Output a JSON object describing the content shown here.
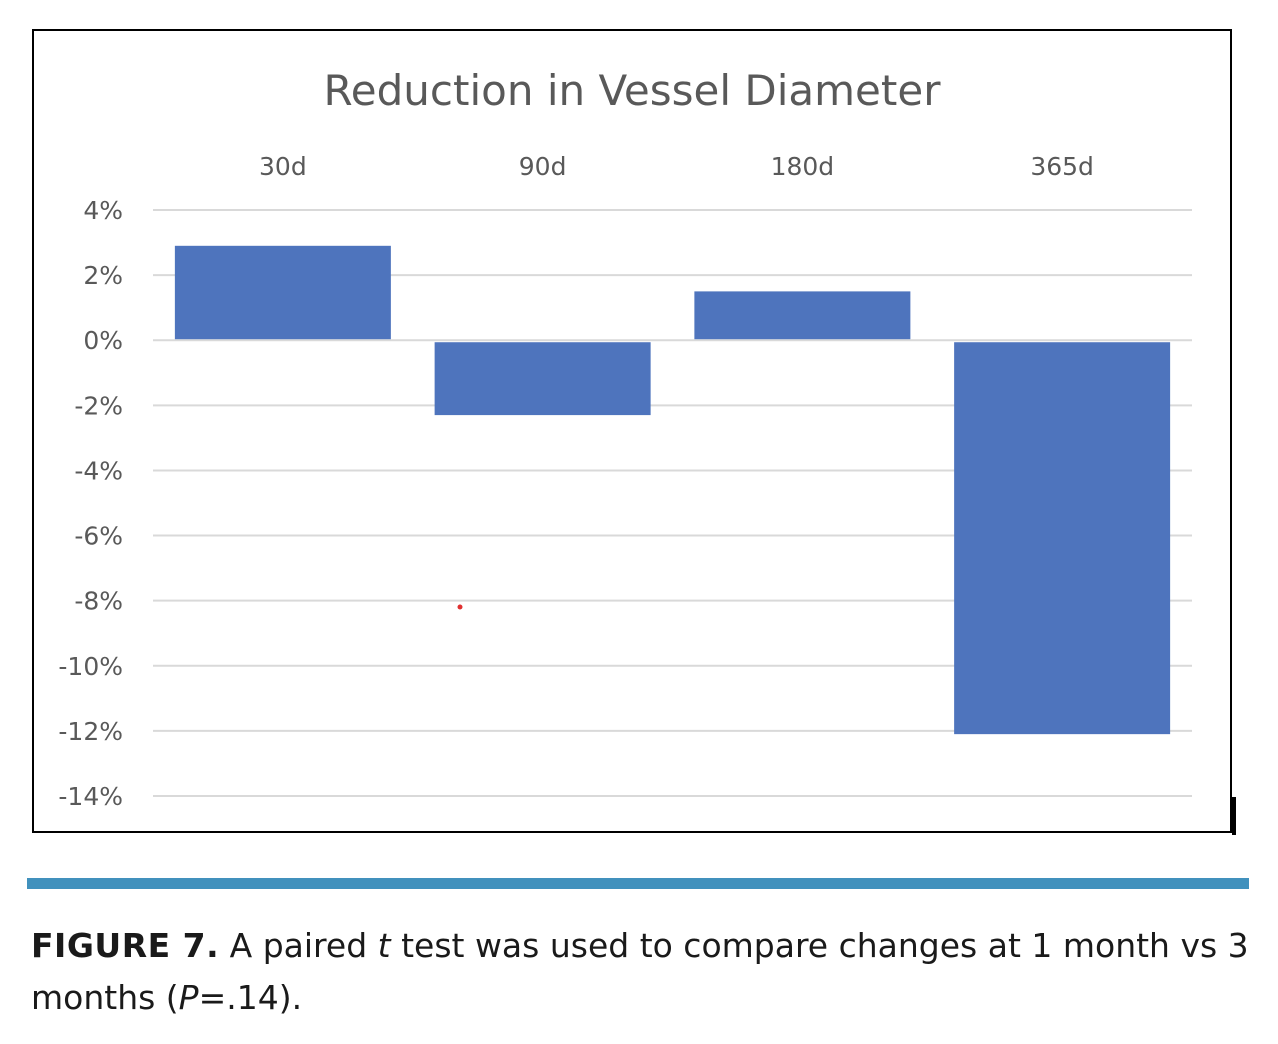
{
  "chart_data": {
    "type": "bar",
    "title": "Reduction in Vessel Diameter",
    "categories": [
      "30d",
      "90d",
      "180d",
      "365d"
    ],
    "values": [
      2.9,
      -2.3,
      1.5,
      -12.1
    ],
    "y_ticks": [
      "4%",
      "2%",
      "0%",
      "-2%",
      "-4%",
      "-6%",
      "-8%",
      "-10%",
      "-12%",
      "-14%"
    ],
    "ylim": [
      -14,
      4
    ],
    "category_axis_position": "top",
    "grid": true,
    "legend": "none",
    "bar_color": "#4e74bd",
    "title_color": "#595959",
    "tick_label_color": "#595959",
    "gridline_color": "#d9d9d9",
    "marker_color": "#e03030"
  },
  "figure": {
    "rule_color": "#4191bd",
    "caption": {
      "lead": "FIGURE 7.",
      "part1": " A paired ",
      "italic_t": "t",
      "part2": " test was used to compare changes at 1 month vs 3 months (",
      "italic_p": "P",
      "part3": "=.14)."
    }
  }
}
